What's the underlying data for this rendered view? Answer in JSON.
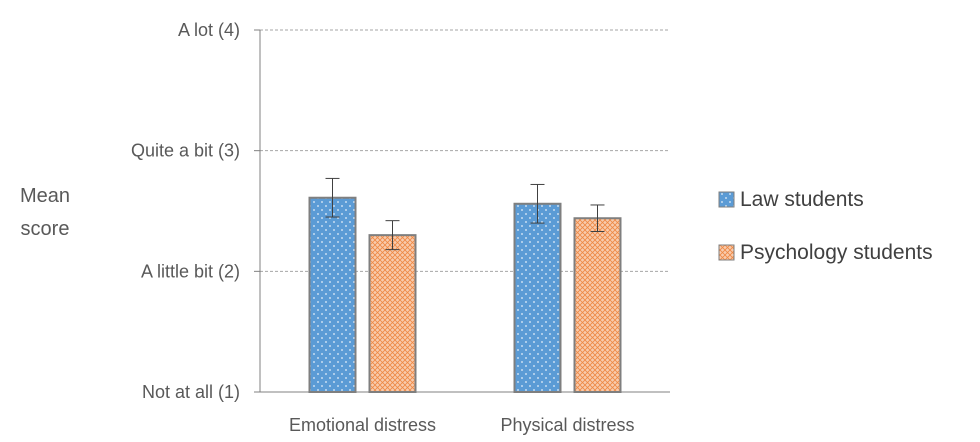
{
  "chart_data": {
    "type": "bar",
    "title": "",
    "xlabel": "",
    "ylabel": [
      "Mean",
      "score"
    ],
    "ylim": [
      1,
      4
    ],
    "yticks": [
      {
        "value": 1,
        "label": "Not at all (1)"
      },
      {
        "value": 2,
        "label": "A little bit (2)"
      },
      {
        "value": 3,
        "label": "Quite a bit (3)"
      },
      {
        "value": 4,
        "label": "A lot (4)"
      }
    ],
    "grid": true,
    "legend_position": "right",
    "categories": [
      "Emotional distress",
      "Physical distress"
    ],
    "series": [
      {
        "name": "Law students",
        "values": [
          2.61,
          2.56
        ],
        "error": [
          0.16,
          0.16
        ],
        "color": "#5b9bd5",
        "edge": "#7f7f7f",
        "pattern": "dots"
      },
      {
        "name": "Psychology students",
        "values": [
          2.3,
          2.44
        ],
        "error": [
          0.12,
          0.11
        ],
        "color": "#f8cbad",
        "edge": "#7f7f7f",
        "pattern": "crosshatch"
      }
    ]
  }
}
